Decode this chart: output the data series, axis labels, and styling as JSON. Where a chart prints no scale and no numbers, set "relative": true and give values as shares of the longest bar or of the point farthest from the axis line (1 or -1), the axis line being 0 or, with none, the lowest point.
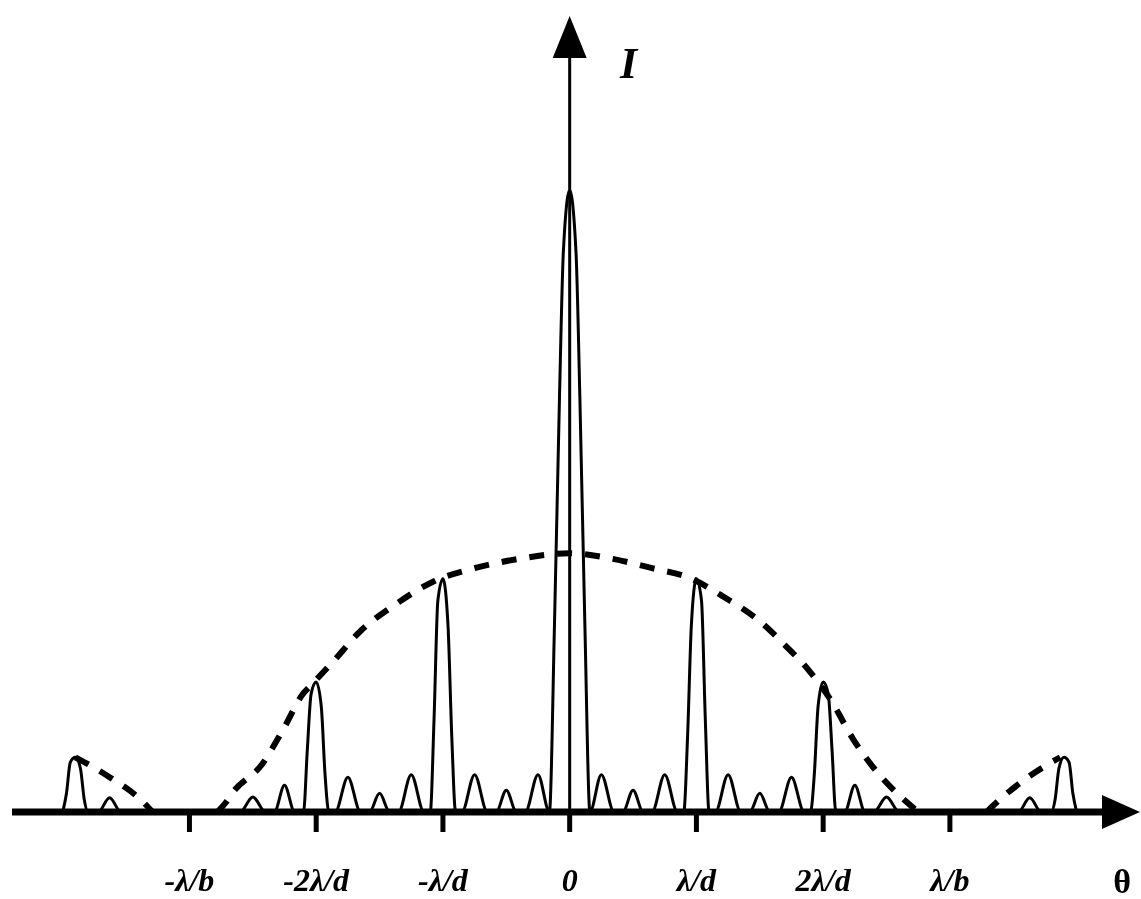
{
  "chart_data": {
    "type": "line",
    "xlabel": "θ",
    "ylabel": "I",
    "relative": true,
    "marker": "none",
    "tick_labels": "x",
    "xlim": [
      -4.4,
      4.2
    ],
    "xticks": [
      {
        "value": -3,
        "label": "-λ/b"
      },
      {
        "value": -2,
        "label": "-2λ/d"
      },
      {
        "value": -1,
        "label": "-λ/d"
      },
      0,
      {
        "value": 1,
        "label": "λ/d"
      },
      {
        "value": 2,
        "label": "2λ/d"
      },
      {
        "value": 3,
        "label": "λ/b"
      }
    ],
    "series": [
      {
        "type": "line",
        "color": "#000000",
        "line_style": "solid",
        "x": [
          -4.0,
          -3.97,
          -3.94,
          -3.9,
          -3.86,
          -3.83,
          -3.8,
          -3.72,
          -3.63,
          -3.54,
          -2.6,
          -2.5,
          -2.4,
          -2.33,
          -2.25,
          -2.17,
          -2.1,
          -2.07,
          -2.04,
          -2.0,
          -1.96,
          -1.93,
          -1.9,
          -1.85,
          -1.75,
          -1.65,
          -1.58,
          -1.5,
          -1.42,
          -1.35,
          -1.25,
          -1.15,
          -1.1,
          -1.07,
          -1.04,
          -1.0,
          -0.96,
          -0.93,
          -0.9,
          -0.85,
          -0.75,
          -0.65,
          -0.58,
          -0.5,
          -0.42,
          -0.35,
          -0.25,
          -0.16,
          -0.12,
          -0.08,
          -0.05,
          0,
          0.05,
          0.08,
          0.12,
          0.16,
          0.25,
          0.35,
          0.42,
          0.5,
          0.58,
          0.65,
          0.75,
          0.85,
          0.9,
          0.93,
          0.96,
          1.0,
          1.04,
          1.07,
          1.1,
          1.15,
          1.25,
          1.35,
          1.42,
          1.5,
          1.58,
          1.65,
          1.75,
          1.85,
          1.9,
          1.93,
          1.96,
          2.0,
          2.04,
          2.07,
          2.1,
          2.17,
          2.25,
          2.33,
          2.4,
          2.5,
          2.6,
          3.54,
          3.63,
          3.72,
          3.8,
          3.83,
          3.86,
          3.9,
          3.94,
          3.97,
          4.0
        ],
        "values": [
          0,
          0.03,
          0.08,
          0.088,
          0.07,
          0.02,
          0,
          0,
          0.023,
          0,
          0,
          0.024,
          0,
          0,
          0.043,
          0,
          0,
          0.1,
          0.19,
          0.209,
          0.17,
          0.06,
          0,
          0,
          0.056,
          0,
          0,
          0.03,
          0,
          0,
          0.06,
          0,
          0,
          0.15,
          0.34,
          0.375,
          0.3,
          0.12,
          0,
          0,
          0.06,
          0,
          0,
          0.035,
          0,
          0,
          0.06,
          0,
          0.3,
          0.67,
          0.9,
          1,
          0.9,
          0.67,
          0.3,
          0,
          0.06,
          0,
          0,
          0.035,
          0,
          0,
          0.06,
          0,
          0,
          0.12,
          0.3,
          0.375,
          0.34,
          0.15,
          0,
          0,
          0.06,
          0,
          0,
          0.03,
          0,
          0,
          0.056,
          0,
          0,
          0.06,
          0.17,
          0.209,
          0.19,
          0.1,
          0,
          0,
          0.043,
          0,
          0,
          0.024,
          0,
          0,
          0.023,
          0,
          0,
          0.02,
          0.07,
          0.088,
          0.08,
          0.03,
          0
        ]
      },
      {
        "type": "line",
        "color": "#000000",
        "line_style": "dashed",
        "x": [
          -3.9,
          -3.63,
          -3.38,
          -3.29,
          -3.0,
          -2.78,
          -2.71,
          -2.66,
          -2.43,
          -2.27,
          -2.1,
          -2.04,
          -1.87,
          -1.65,
          -1.38,
          -1.07,
          -0.75,
          -0.4,
          0,
          0.34,
          0.65,
          0.95,
          1.23,
          1.48,
          1.7,
          1.89,
          2.06,
          2.24,
          2.43,
          2.67,
          2.75,
          3.0,
          3.29,
          3.33,
          3.61,
          3.87
        ],
        "values": [
          0.088,
          0.056,
          0.019,
          0,
          null,
          0,
          0.016,
          0.031,
          0.076,
          0.129,
          0.191,
          0.204,
          0.241,
          0.291,
          0.333,
          0.371,
          0.392,
          0.407,
          0.416,
          0.407,
          0.392,
          0.376,
          0.344,
          0.31,
          0.268,
          0.227,
          0.18,
          0.116,
          0.063,
          0.014,
          0,
          null,
          0,
          0.008,
          0.055,
          0.088
        ]
      }
    ]
  }
}
